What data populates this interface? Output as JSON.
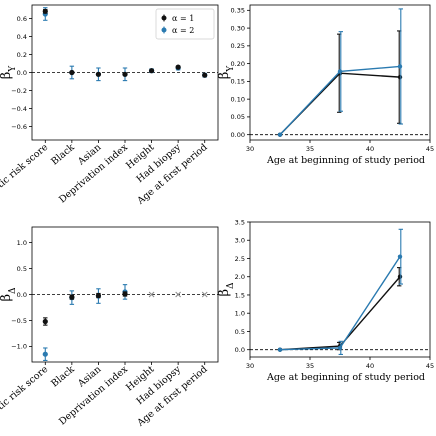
{
  "colors": {
    "alpha1": "#111111",
    "alpha2": "#2a7ab0",
    "gray": "#8c8c8c"
  },
  "legend": {
    "entries": [
      "α = 1",
      "α = 2"
    ],
    "placement": "top-right"
  },
  "chart_data": [
    {
      "id": "tl",
      "type": "scatter",
      "ylabel_main": "β",
      "ylabel_sub": "Y",
      "xlabel": "",
      "categories": [
        "Genetic risk score",
        "Black",
        "Asian",
        "Deprivation index",
        "Height",
        "Had biopsy",
        "Age at first period"
      ],
      "ylim": [
        -0.75,
        0.75
      ],
      "yticks": [
        -0.6,
        -0.4,
        -0.2,
        0.0,
        0.2,
        0.4,
        0.6
      ],
      "ytick_labels": [
        "−0.6",
        "−0.4",
        "−0.2",
        "0.0",
        "0.2",
        "0.4",
        "0.6"
      ],
      "refline_y": 0,
      "series": [
        {
          "name": "α = 1",
          "values": [
            0.68,
            0.0,
            -0.02,
            -0.02,
            0.02,
            0.06,
            -0.03
          ],
          "err": [
            0.02,
            0.01,
            0.01,
            0.01,
            0.005,
            0.01,
            0.005
          ]
        },
        {
          "name": "α = 2",
          "values": [
            0.65,
            0.0,
            -0.02,
            -0.02,
            0.02,
            0.05,
            -0.03
          ],
          "err": [
            0.07,
            0.07,
            0.07,
            0.07,
            0.02,
            0.02,
            0.02
          ]
        }
      ],
      "gray_points": []
    },
    {
      "id": "tr",
      "type": "line",
      "ylabel_main": "β",
      "ylabel_sub": "Y",
      "xlabel": "Age at beginning of study period",
      "xlim": [
        30,
        45
      ],
      "xticks": [
        30,
        35,
        40,
        45
      ],
      "ylim": [
        -0.015,
        0.365
      ],
      "yticks": [
        0.0,
        0.05,
        0.1,
        0.15,
        0.2,
        0.25,
        0.3,
        0.35
      ],
      "ytick_labels": [
        "0.00",
        "0.05",
        "0.10",
        "0.15",
        "0.20",
        "0.25",
        "0.30",
        "0.35"
      ],
      "refline_y": 0,
      "x": [
        32.5,
        37.5,
        42.5
      ],
      "series": [
        {
          "name": "α = 1",
          "values": [
            0.0,
            0.173,
            0.162
          ],
          "err": [
            0.0,
            0.11,
            0.13
          ]
        },
        {
          "name": "α = 2",
          "values": [
            0.0,
            0.178,
            0.192
          ],
          "err": [
            0.0,
            0.112,
            0.162
          ]
        }
      ]
    },
    {
      "id": "bl",
      "type": "scatter",
      "ylabel_main": "β",
      "ylabel_sub": "Δ",
      "xlabel": "",
      "categories": [
        "Genetic risk score",
        "Black",
        "Asian",
        "Deprivation index",
        "Height",
        "Had biopsy",
        "Age at first period"
      ],
      "ylim": [
        -1.3,
        1.3
      ],
      "yticks": [
        -1.0,
        -0.5,
        0.0,
        0.5,
        1.0
      ],
      "ytick_labels": [
        "−1.0",
        "−0.5",
        "0.0",
        "0.5",
        "1.0"
      ],
      "refline_y": 0,
      "series": [
        {
          "name": "α = 1",
          "values": [
            -0.52,
            -0.05,
            -0.02,
            0.01,
            null,
            null,
            null
          ],
          "err": [
            0.07,
            0.04,
            0.04,
            0.04,
            null,
            null,
            null
          ]
        },
        {
          "name": "α = 2",
          "values": [
            -1.15,
            -0.06,
            -0.03,
            0.05,
            null,
            null,
            null
          ],
          "err": [
            0.12,
            0.13,
            0.14,
            0.14,
            null,
            null,
            null
          ]
        }
      ],
      "gray_points": [
        4,
        5,
        6
      ]
    },
    {
      "id": "br",
      "type": "line",
      "ylabel_main": "β",
      "ylabel_sub": "Δ",
      "xlabel": "Age at beginning of study period",
      "xlim": [
        30,
        45
      ],
      "xticks": [
        30,
        35,
        40,
        45
      ],
      "ylim": [
        -0.2,
        3.5
      ],
      "yticks": [
        0.0,
        0.5,
        1.0,
        1.5,
        2.0,
        2.5,
        3.0,
        3.5
      ],
      "ytick_labels": [
        "0.0",
        "0.5",
        "1.0",
        "1.5",
        "2.0",
        "2.5",
        "3.0",
        "3.5"
      ],
      "refline_y": 0,
      "x": [
        32.5,
        37.5,
        42.5
      ],
      "series": [
        {
          "name": "α = 1",
          "values": [
            0.0,
            0.1,
            2.0
          ],
          "err": [
            0.0,
            0.1,
            0.25
          ]
        },
        {
          "name": "α = 2",
          "values": [
            0.0,
            0.05,
            2.55
          ],
          "err": [
            0.0,
            0.18,
            0.75
          ]
        }
      ]
    }
  ]
}
